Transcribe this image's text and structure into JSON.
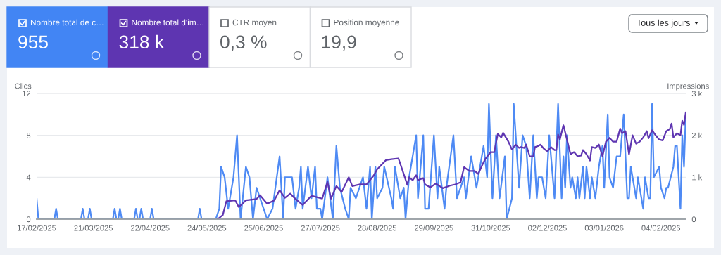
{
  "chart_data": [
    {
      "type": "other",
      "annotations": [
        "Nombre total de c…",
        "955",
        "Nombre total d'im…",
        "318 k",
        "CTR moyen",
        "0,3 %",
        "Position moyenne",
        "19,9",
        "Tous les jours"
      ]
    },
    {
      "type": "line",
      "ylabel": "Clics",
      "y2label": "Impressions",
      "xlim": [
        "2025-02-17",
        "2026-02-18"
      ],
      "xticks": [
        {
          "value": "2025-02-17",
          "label": "17/02/2025"
        },
        {
          "value": "2025-03-21",
          "label": "21/03/2025"
        },
        {
          "value": "2025-04-22",
          "label": "22/04/2025"
        },
        {
          "value": "2025-05-24",
          "label": "24/05/2025"
        },
        {
          "value": "2025-06-25",
          "label": "25/06/2025"
        },
        {
          "value": "2025-07-27",
          "label": "27/07/2025"
        },
        {
          "value": "2025-08-28",
          "label": "28/08/2025"
        },
        {
          "value": "2025-09-29",
          "label": "29/09/2025"
        },
        {
          "value": "2025-10-31",
          "label": "31/10/2025"
        },
        {
          "value": "2025-12-02",
          "label": "02/12/2025"
        },
        {
          "value": "2026-01-03",
          "label": "03/01/2026"
        },
        {
          "value": "2026-02-04",
          "label": "04/02/2026"
        }
      ],
      "ylim": [
        0,
        12
      ],
      "yticks": [
        0,
        4,
        8,
        12
      ],
      "y2lim": [
        0,
        3000
      ],
      "y2ticks": [
        0,
        {
          "value": 1000,
          "label": "1 k"
        },
        {
          "value": 2000,
          "label": "2 k"
        },
        {
          "value": 3000,
          "label": "3 k"
        }
      ],
      "grid": "y",
      "series": [
        {
          "color": "#4e8af4",
          "x": [
            "2025-02-17",
            "2025-02-18",
            "2025-02-27",
            "2025-02-28",
            "2025-03-01",
            "2025-03-14",
            "2025-03-15",
            "2025-03-16",
            "2025-03-18",
            "2025-03-19",
            "2025-03-20",
            "2025-04-01",
            "2025-04-02",
            "2025-04-03",
            "2025-04-04",
            "2025-04-05",
            "2025-04-06",
            "2025-04-13",
            "2025-04-14",
            "2025-04-15",
            "2025-04-16",
            "2025-04-17",
            "2025-04-18",
            "2025-04-22",
            "2025-04-23",
            "2025-04-24",
            "2025-05-19",
            "2025-05-20",
            "2025-05-21",
            "2025-05-29",
            "2025-05-31",
            "2025-06-01",
            "2025-06-03",
            "2025-06-05",
            "2025-06-08",
            "2025-06-10",
            "2025-06-12",
            "2025-06-15",
            "2025-06-17",
            "2025-06-19",
            "2025-06-21",
            "2025-06-25",
            "2025-06-27",
            "2025-06-30",
            "2025-07-04",
            "2025-07-06",
            "2025-07-07",
            "2025-07-11",
            "2025-07-13",
            "2025-07-15",
            "2025-07-16",
            "2025-07-17",
            "2025-07-20",
            "2025-07-22",
            "2025-07-24",
            "2025-07-25",
            "2025-07-27",
            "2025-07-28",
            "2025-07-31",
            "2025-08-03",
            "2025-08-05",
            "2025-08-07",
            "2025-08-10",
            "2025-08-12",
            "2025-08-13",
            "2025-08-16",
            "2025-08-18",
            "2025-08-20",
            "2025-08-22",
            "2025-08-24",
            "2025-08-25",
            "2025-08-27",
            "2025-08-28",
            "2025-08-31",
            "2025-09-01",
            "2025-09-05",
            "2025-09-06",
            "2025-09-07",
            "2025-09-10",
            "2025-09-12",
            "2025-09-13",
            "2025-09-15",
            "2025-09-19",
            "2025-09-20",
            "2025-09-23",
            "2025-09-24",
            "2025-09-26",
            "2025-09-29",
            "2025-10-01",
            "2025-10-02",
            "2025-10-05",
            "2025-10-06",
            "2025-10-10",
            "2025-10-12",
            "2025-10-16",
            "2025-10-17",
            "2025-10-20",
            "2025-10-23",
            "2025-10-27",
            "2025-10-29",
            "2025-10-30",
            "2025-11-01",
            "2025-11-03",
            "2025-11-05",
            "2025-11-08",
            "2025-11-09",
            "2025-11-12",
            "2025-11-13",
            "2025-11-16",
            "2025-11-18",
            "2025-11-20",
            "2025-11-22",
            "2025-11-24",
            "2025-11-26",
            "2025-11-27",
            "2025-11-29",
            "2025-12-01",
            "2025-12-03",
            "2025-12-06",
            "2025-12-08",
            "2025-12-10",
            "2025-12-11",
            "2025-12-12",
            "2025-12-13",
            "2025-12-15",
            "2025-12-16",
            "2025-12-18",
            "2025-12-19",
            "2025-12-20",
            "2025-12-22",
            "2025-12-23",
            "2025-12-24",
            "2025-12-26",
            "2025-12-27",
            "2025-12-29",
            "2025-12-31",
            "2026-01-02",
            "2026-01-03",
            "2026-01-05",
            "2026-01-06",
            "2026-01-08",
            "2026-01-10",
            "2026-01-12",
            "2026-01-13",
            "2026-01-14",
            "2026-01-16",
            "2026-01-17",
            "2026-01-18",
            "2026-01-21",
            "2026-01-22",
            "2026-01-25",
            "2026-01-26",
            "2026-01-28",
            "2026-01-29",
            "2026-01-30",
            "2026-01-31",
            "2026-02-03",
            "2026-02-04",
            "2026-02-06",
            "2026-02-07",
            "2026-02-08",
            "2026-02-11",
            "2026-02-12",
            "2026-02-13",
            "2026-02-15",
            "2026-02-16",
            "2026-02-17",
            "2026-02-18"
          ],
          "values": [
            2,
            0,
            0,
            1,
            0,
            0,
            1,
            0,
            0,
            1,
            0,
            0,
            1,
            0,
            0,
            1,
            0,
            0,
            1,
            0,
            0,
            1,
            0,
            0,
            1,
            0,
            0,
            1,
            0,
            0,
            1,
            5,
            4,
            1,
            4,
            8,
            0,
            5,
            4,
            0,
            3,
            1,
            0,
            1,
            6,
            0,
            4,
            4,
            1,
            3,
            5,
            1,
            5,
            2,
            5,
            1,
            1,
            0,
            4,
            0,
            7,
            3,
            1,
            0,
            3,
            2,
            3,
            4,
            1,
            5,
            0,
            5,
            2,
            3,
            5,
            2,
            1,
            5,
            2,
            3,
            0,
            4,
            8,
            2,
            8,
            1,
            1,
            8,
            2,
            5,
            1,
            3,
            8,
            2,
            4,
            2,
            6,
            3,
            7,
            4,
            11,
            2,
            8,
            2,
            6,
            0,
            2,
            11,
            3,
            8,
            7,
            2,
            8,
            2,
            4,
            4,
            2,
            8,
            2,
            11,
            2,
            6,
            3,
            8,
            3,
            4,
            2,
            4,
            2,
            5,
            2,
            5,
            2,
            4,
            2,
            5,
            7,
            3,
            10,
            4,
            3,
            6,
            6,
            8,
            10,
            2,
            2,
            5,
            2,
            4,
            1,
            4,
            2,
            2,
            11,
            4,
            5,
            3,
            2,
            3,
            3,
            5,
            7,
            7,
            1,
            8,
            5,
            10
          ]
        },
        {
          "color": "#5e35b1",
          "axis": "y2",
          "x": [
            "2025-05-30",
            "2025-06-02",
            "2025-06-04",
            "2025-06-09",
            "2025-06-11",
            "2025-06-15",
            "2025-06-21",
            "2025-06-23",
            "2025-06-27",
            "2025-07-01",
            "2025-07-04",
            "2025-07-07",
            "2025-07-10",
            "2025-07-13",
            "2025-07-17",
            "2025-07-22",
            "2025-07-28",
            "2025-07-31",
            "2025-08-02",
            "2025-08-05",
            "2025-08-08",
            "2025-08-12",
            "2025-08-14",
            "2025-08-18",
            "2025-08-22",
            "2025-08-26",
            "2025-08-28",
            "2025-09-02",
            "2025-09-05",
            "2025-09-09",
            "2025-09-11",
            "2025-09-14",
            "2025-09-15",
            "2025-09-17",
            "2025-09-19",
            "2025-09-20",
            "2025-09-23",
            "2025-09-24",
            "2025-09-27",
            "2025-09-30",
            "2025-10-04",
            "2025-10-08",
            "2025-10-11",
            "2025-10-14",
            "2025-10-16",
            "2025-10-19",
            "2025-10-22",
            "2025-10-24",
            "2025-10-26",
            "2025-10-28",
            "2025-10-31",
            "2025-11-02",
            "2025-11-04",
            "2025-11-06",
            "2025-11-07",
            "2025-11-10",
            "2025-11-12",
            "2025-11-14",
            "2025-11-16",
            "2025-11-17",
            "2025-11-19",
            "2025-11-20",
            "2025-11-22",
            "2025-11-24",
            "2025-11-25",
            "2025-11-27",
            "2025-11-28",
            "2025-11-30",
            "2025-12-02",
            "2025-12-04",
            "2025-12-06",
            "2025-12-07",
            "2025-12-08",
            "2025-12-09",
            "2025-12-11",
            "2025-12-13",
            "2025-12-15",
            "2025-12-17",
            "2025-12-19",
            "2025-12-21",
            "2025-12-22",
            "2025-12-24",
            "2025-12-26",
            "2025-12-27",
            "2025-12-29",
            "2025-12-31",
            "2026-01-02",
            "2026-01-04",
            "2026-01-06",
            "2026-01-08",
            "2026-01-10",
            "2026-01-12",
            "2026-01-13",
            "2026-01-15",
            "2026-01-17",
            "2026-01-19",
            "2026-01-21",
            "2026-01-23",
            "2026-01-25",
            "2026-01-27",
            "2026-01-28",
            "2026-01-30",
            "2026-02-01",
            "2026-02-03",
            "2026-02-05",
            "2026-02-07",
            "2026-02-09",
            "2026-02-10",
            "2026-02-11",
            "2026-02-13",
            "2026-02-15",
            "2026-02-16",
            "2026-02-17",
            "2026-02-18"
          ],
          "values": [
            0,
            100,
            430,
            450,
            290,
            450,
            480,
            570,
            370,
            450,
            690,
            510,
            610,
            480,
            340,
            560,
            490,
            890,
            490,
            790,
            650,
            1000,
            790,
            830,
            830,
            1040,
            1190,
            1410,
            1430,
            1450,
            1200,
            820,
            1000,
            930,
            1050,
            930,
            980,
            830,
            760,
            850,
            740,
            800,
            830,
            880,
            1240,
            1150,
            1150,
            1080,
            1270,
            1440,
            1600,
            1600,
            2030,
            1950,
            2060,
            1850,
            1660,
            1780,
            1700,
            1720,
            1700,
            1780,
            1500,
            1500,
            1720,
            1750,
            1780,
            1680,
            1620,
            1720,
            1650,
            1650,
            2020,
            1900,
            2240,
            1900,
            1550,
            1600,
            1500,
            1520,
            1650,
            1550,
            1400,
            1720,
            1700,
            1780,
            1500,
            1850,
            1940,
            1850,
            1850,
            2160,
            2050,
            2100,
            1550,
            2000,
            1800,
            1850,
            1950,
            2100,
            1930,
            2120,
            2000,
            1900,
            1880,
            2100,
            2150,
            2280,
            1950,
            2050,
            2000,
            2350,
            2250,
            2550
          ]
        }
      ]
    }
  ]
}
